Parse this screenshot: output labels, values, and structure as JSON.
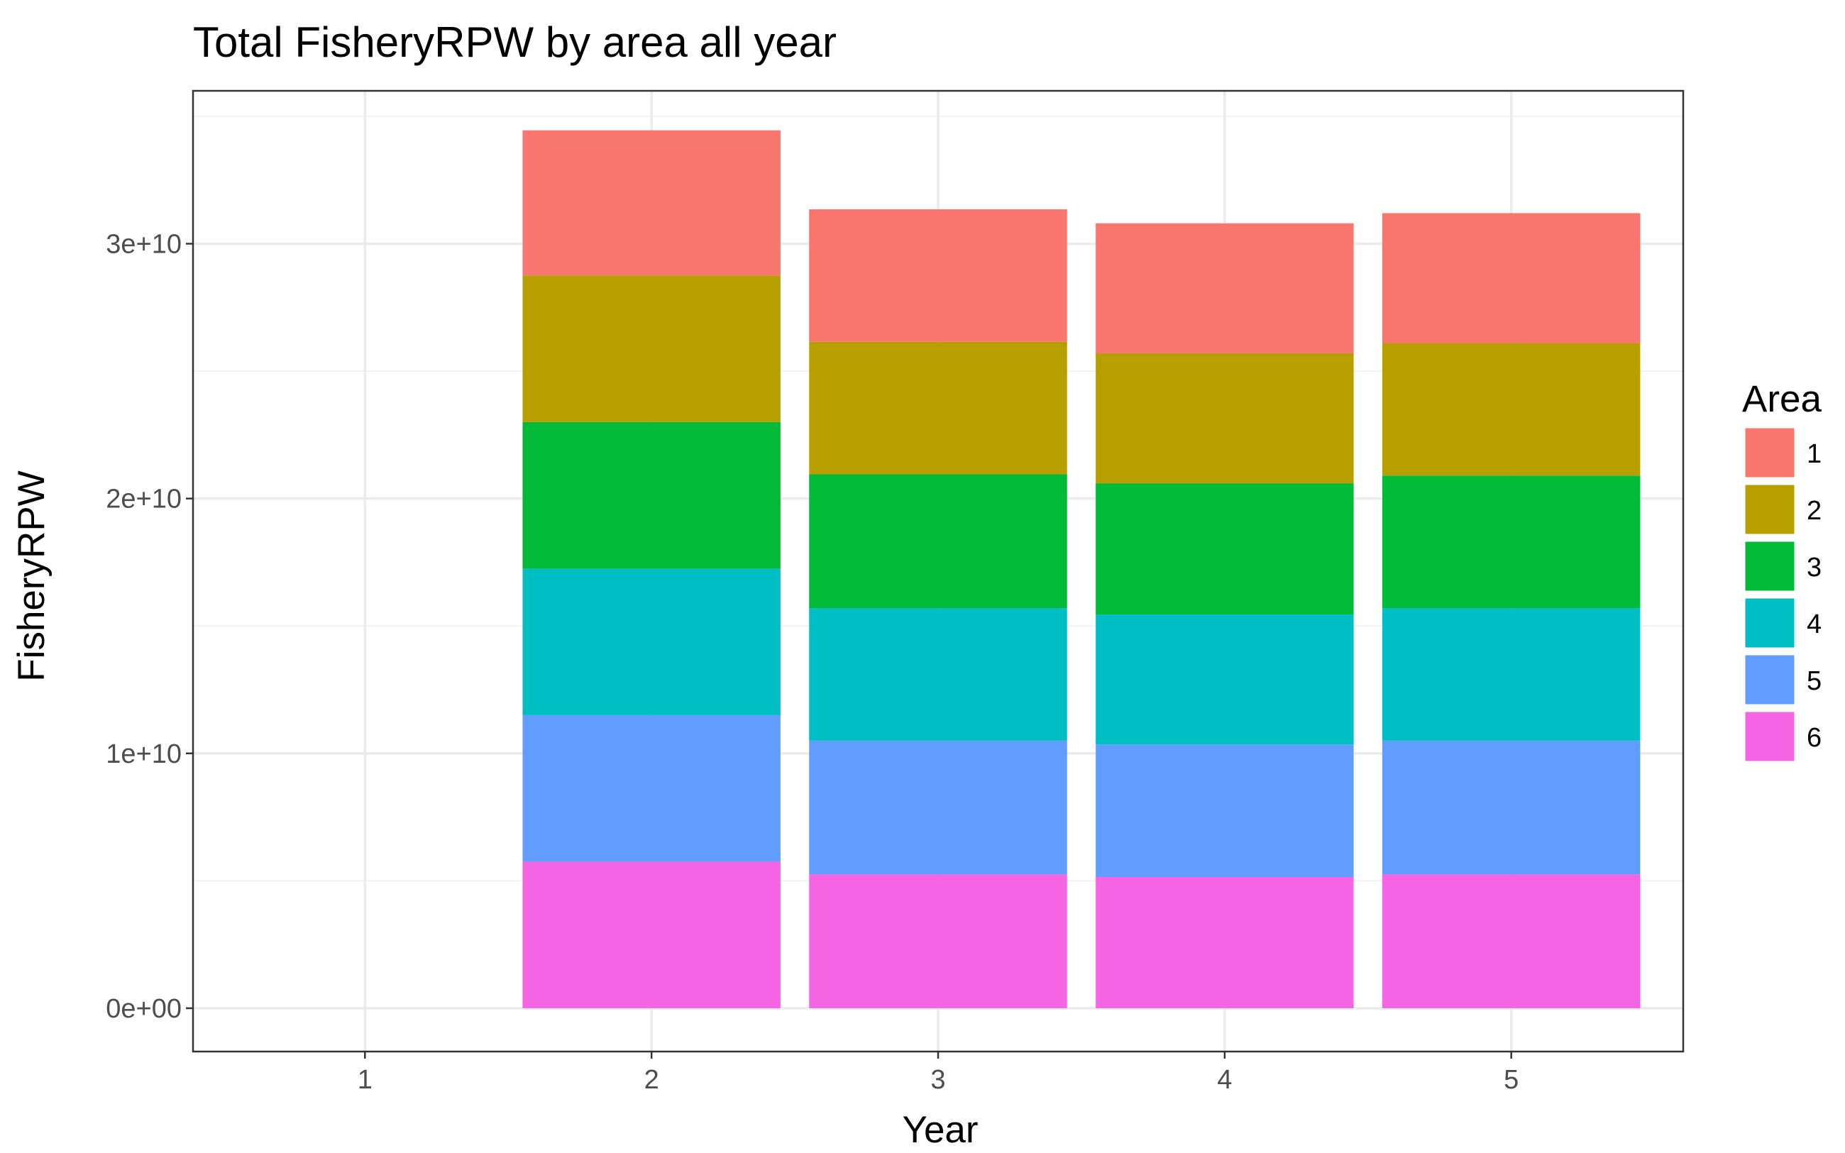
{
  "chart_data": {
    "type": "bar",
    "stacked": true,
    "title": "Total FisheryRPW by area all year",
    "xlabel": "Year",
    "ylabel": "FisheryRPW",
    "categories": [
      "1",
      "2",
      "3",
      "4",
      "5"
    ],
    "ylim": [
      -1700000000.0,
      36000000000.0
    ],
    "yticks": [
      0,
      10000000000,
      20000000000,
      30000000000
    ],
    "ytick_labels": [
      "0e+00",
      "1e+10",
      "2e+10",
      "3e+10"
    ],
    "grid": true,
    "legend": {
      "title": "Area",
      "position": "right"
    },
    "series": [
      {
        "name": "1",
        "color": "#F8766D",
        "values": [
          0,
          5700000000.0,
          5200000000.0,
          5100000000.0,
          5100000000.0
        ]
      },
      {
        "name": "2",
        "color": "#B79F00",
        "values": [
          0,
          5750000000.0,
          5200000000.0,
          5100000000.0,
          5200000000.0
        ]
      },
      {
        "name": "3",
        "color": "#00BA38",
        "values": [
          0,
          5750000000.0,
          5250000000.0,
          5150000000.0,
          5200000000.0
        ]
      },
      {
        "name": "4",
        "color": "#00BFC4",
        "values": [
          0,
          5750000000.0,
          5200000000.0,
          5100000000.0,
          5200000000.0
        ]
      },
      {
        "name": "5",
        "color": "#619CFF",
        "values": [
          0,
          5750000000.0,
          5250000000.0,
          5200000000.0,
          5250000000.0
        ]
      },
      {
        "name": "6",
        "color": "#F564E3",
        "values": [
          0,
          5750000000.0,
          5250000000.0,
          5150000000.0,
          5250000000.0
        ]
      }
    ]
  }
}
